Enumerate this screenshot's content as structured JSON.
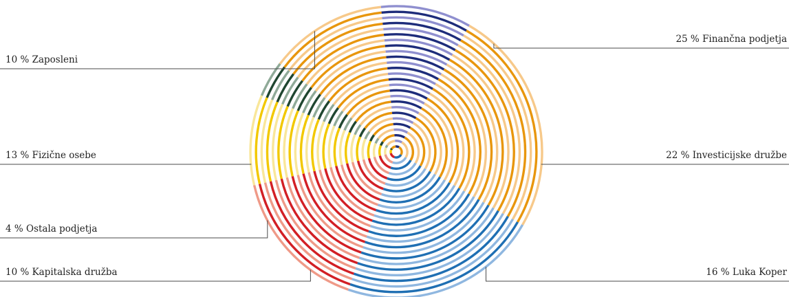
{
  "chart_data": {
    "type": "pie",
    "title": "",
    "unit": "%",
    "slices": [
      {
        "label": "Finančna podjetja",
        "value": 25,
        "text": "25 % Finančna podjetja",
        "shades": [
          "#e8960d",
          "#f7c98a"
        ]
      },
      {
        "label": "Investicijske družbe",
        "value": 22,
        "text": "22 % Investicijske družbe",
        "shades": [
          "#1f6fb3",
          "#8fb7e0"
        ]
      },
      {
        "label": "Luka Koper",
        "value": 16,
        "text": "16 % Luka Koper",
        "shades": [
          "#d21f25",
          "#ef9a88"
        ]
      },
      {
        "label": "Kapitalska družba",
        "value": 10,
        "text": "10 % Kapitalska družba",
        "shades": [
          "#f2c800",
          "#f9e79a"
        ]
      },
      {
        "label": "Ostala podjetja",
        "value": 4,
        "text": "4 % Ostala podjetja",
        "shades": [
          "#1f4630",
          "#8faa98"
        ]
      },
      {
        "label": "Fizične osebe",
        "value": 13,
        "text": "13 % Fizične osebe",
        "shades": [
          "#e8960d",
          "#f7c98a"
        ]
      },
      {
        "label": "Zaposleni",
        "value": 10,
        "text": "10 % Zaposleni",
        "shades": [
          "#1d2c7a",
          "#8f8fcf"
        ]
      }
    ],
    "legend": "leader-lines"
  }
}
